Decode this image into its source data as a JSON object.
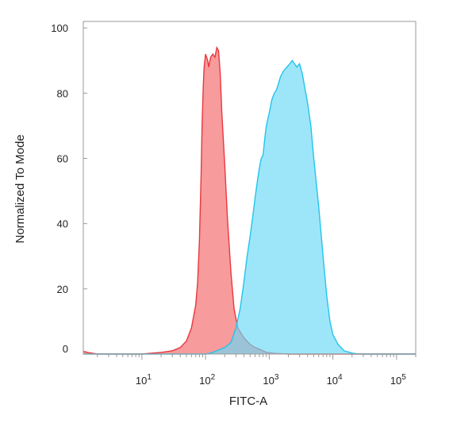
{
  "chart_data": {
    "type": "area",
    "xlabel": "FITC-A",
    "ylabel": "Normalized To Mode",
    "x_scale": "log",
    "xlim": [
      1.2,
      200000
    ],
    "ylim": [
      0,
      102
    ],
    "x_ticks": [
      {
        "base": "10",
        "exp": "1",
        "value": 10
      },
      {
        "base": "10",
        "exp": "2",
        "value": 100
      },
      {
        "base": "10",
        "exp": "3",
        "value": 1000
      },
      {
        "base": "10",
        "exp": "4",
        "value": 10000
      },
      {
        "base": "10",
        "exp": "5",
        "value": 100000
      }
    ],
    "y_ticks": [
      {
        "label": "0",
        "value": 0
      },
      {
        "label": "20",
        "value": 20
      },
      {
        "label": "40",
        "value": 40
      },
      {
        "label": "60",
        "value": 60
      },
      {
        "label": "80",
        "value": 80
      },
      {
        "label": "100",
        "value": 100
      }
    ],
    "grid": false,
    "legend": "none",
    "series": [
      {
        "color": "#e8383d",
        "fill": "#f47a7c",
        "points": [
          [
            1.2,
            0.8
          ],
          [
            1.5,
            0.4
          ],
          [
            2,
            0
          ],
          [
            10,
            0
          ],
          [
            13,
            0.2
          ],
          [
            20,
            0.5
          ],
          [
            30,
            1
          ],
          [
            40,
            2
          ],
          [
            50,
            4
          ],
          [
            60,
            8
          ],
          [
            70,
            15
          ],
          [
            75,
            22
          ],
          [
            80,
            35
          ],
          [
            85,
            55
          ],
          [
            88,
            70
          ],
          [
            92,
            82
          ],
          [
            95,
            88
          ],
          [
            100,
            92
          ],
          [
            108,
            90
          ],
          [
            112,
            88
          ],
          [
            120,
            91
          ],
          [
            130,
            92
          ],
          [
            140,
            91
          ],
          [
            150,
            94
          ],
          [
            160,
            93
          ],
          [
            170,
            86
          ],
          [
            180,
            74
          ],
          [
            200,
            58
          ],
          [
            220,
            42
          ],
          [
            250,
            25
          ],
          [
            280,
            14
          ],
          [
            320,
            8
          ],
          [
            400,
            5
          ],
          [
            500,
            3
          ],
          [
            600,
            2
          ],
          [
            700,
            1.5
          ],
          [
            900,
            0.5
          ],
          [
            1200,
            0.2
          ],
          [
            2000,
            0
          ],
          [
            200000,
            0
          ]
        ]
      },
      {
        "color": "#23c4ea",
        "fill": "#68d8f6",
        "points": [
          [
            1.2,
            0
          ],
          [
            100,
            0
          ],
          [
            120,
            0.3
          ],
          [
            150,
            1
          ],
          [
            200,
            2
          ],
          [
            250,
            3.5
          ],
          [
            300,
            8
          ],
          [
            350,
            14
          ],
          [
            400,
            22
          ],
          [
            450,
            30
          ],
          [
            500,
            36
          ],
          [
            550,
            42
          ],
          [
            600,
            48
          ],
          [
            650,
            53
          ],
          [
            700,
            57
          ],
          [
            750,
            60
          ],
          [
            800,
            61
          ],
          [
            850,
            66
          ],
          [
            900,
            70
          ],
          [
            1000,
            74
          ],
          [
            1100,
            78
          ],
          [
            1200,
            80
          ],
          [
            1300,
            81
          ],
          [
            1400,
            83
          ],
          [
            1500,
            85
          ],
          [
            1700,
            87
          ],
          [
            1900,
            88
          ],
          [
            2100,
            89
          ],
          [
            2300,
            90
          ],
          [
            2500,
            89
          ],
          [
            2700,
            88
          ],
          [
            3000,
            89
          ],
          [
            3300,
            86
          ],
          [
            3600,
            82
          ],
          [
            4000,
            77
          ],
          [
            4500,
            70
          ],
          [
            5000,
            60
          ],
          [
            6000,
            45
          ],
          [
            7000,
            30
          ],
          [
            8000,
            18
          ],
          [
            9000,
            10
          ],
          [
            10000,
            6
          ],
          [
            12000,
            3
          ],
          [
            15000,
            1
          ],
          [
            20000,
            0.3
          ],
          [
            25000,
            0
          ],
          [
            200000,
            0
          ]
        ]
      }
    ]
  }
}
